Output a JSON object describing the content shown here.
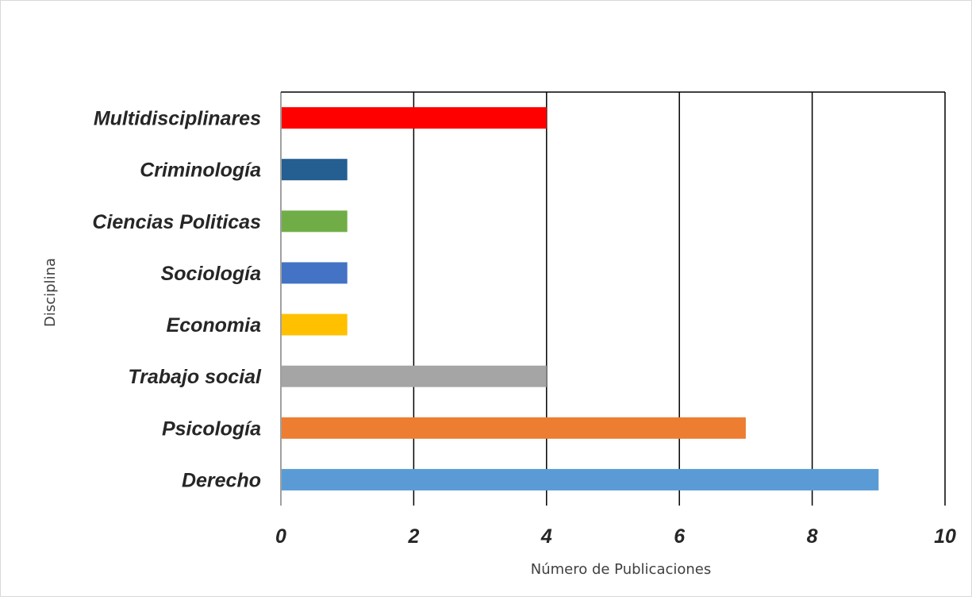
{
  "chart_data": {
    "type": "bar",
    "orientation": "horizontal",
    "title": "",
    "xlabel": "Número de Publicaciones",
    "ylabel": "Disciplina",
    "categories": [
      "Derecho",
      "Psicología",
      "Trabajo social",
      "Economia",
      "Sociología",
      "Ciencias Politicas",
      "Criminología",
      "Multidisciplinares"
    ],
    "values": [
      9,
      7,
      4,
      1,
      1,
      1,
      1,
      4
    ],
    "colors": [
      "#5b9bd5",
      "#ed7d31",
      "#a5a5a5",
      "#ffc000",
      "#4472c4",
      "#70ad47",
      "#255e91",
      "#ff0000"
    ],
    "xlim": [
      0,
      10
    ],
    "xticks": [
      "0",
      "2",
      "4",
      "6",
      "8",
      "10"
    ],
    "grid": true,
    "legend": "none"
  }
}
